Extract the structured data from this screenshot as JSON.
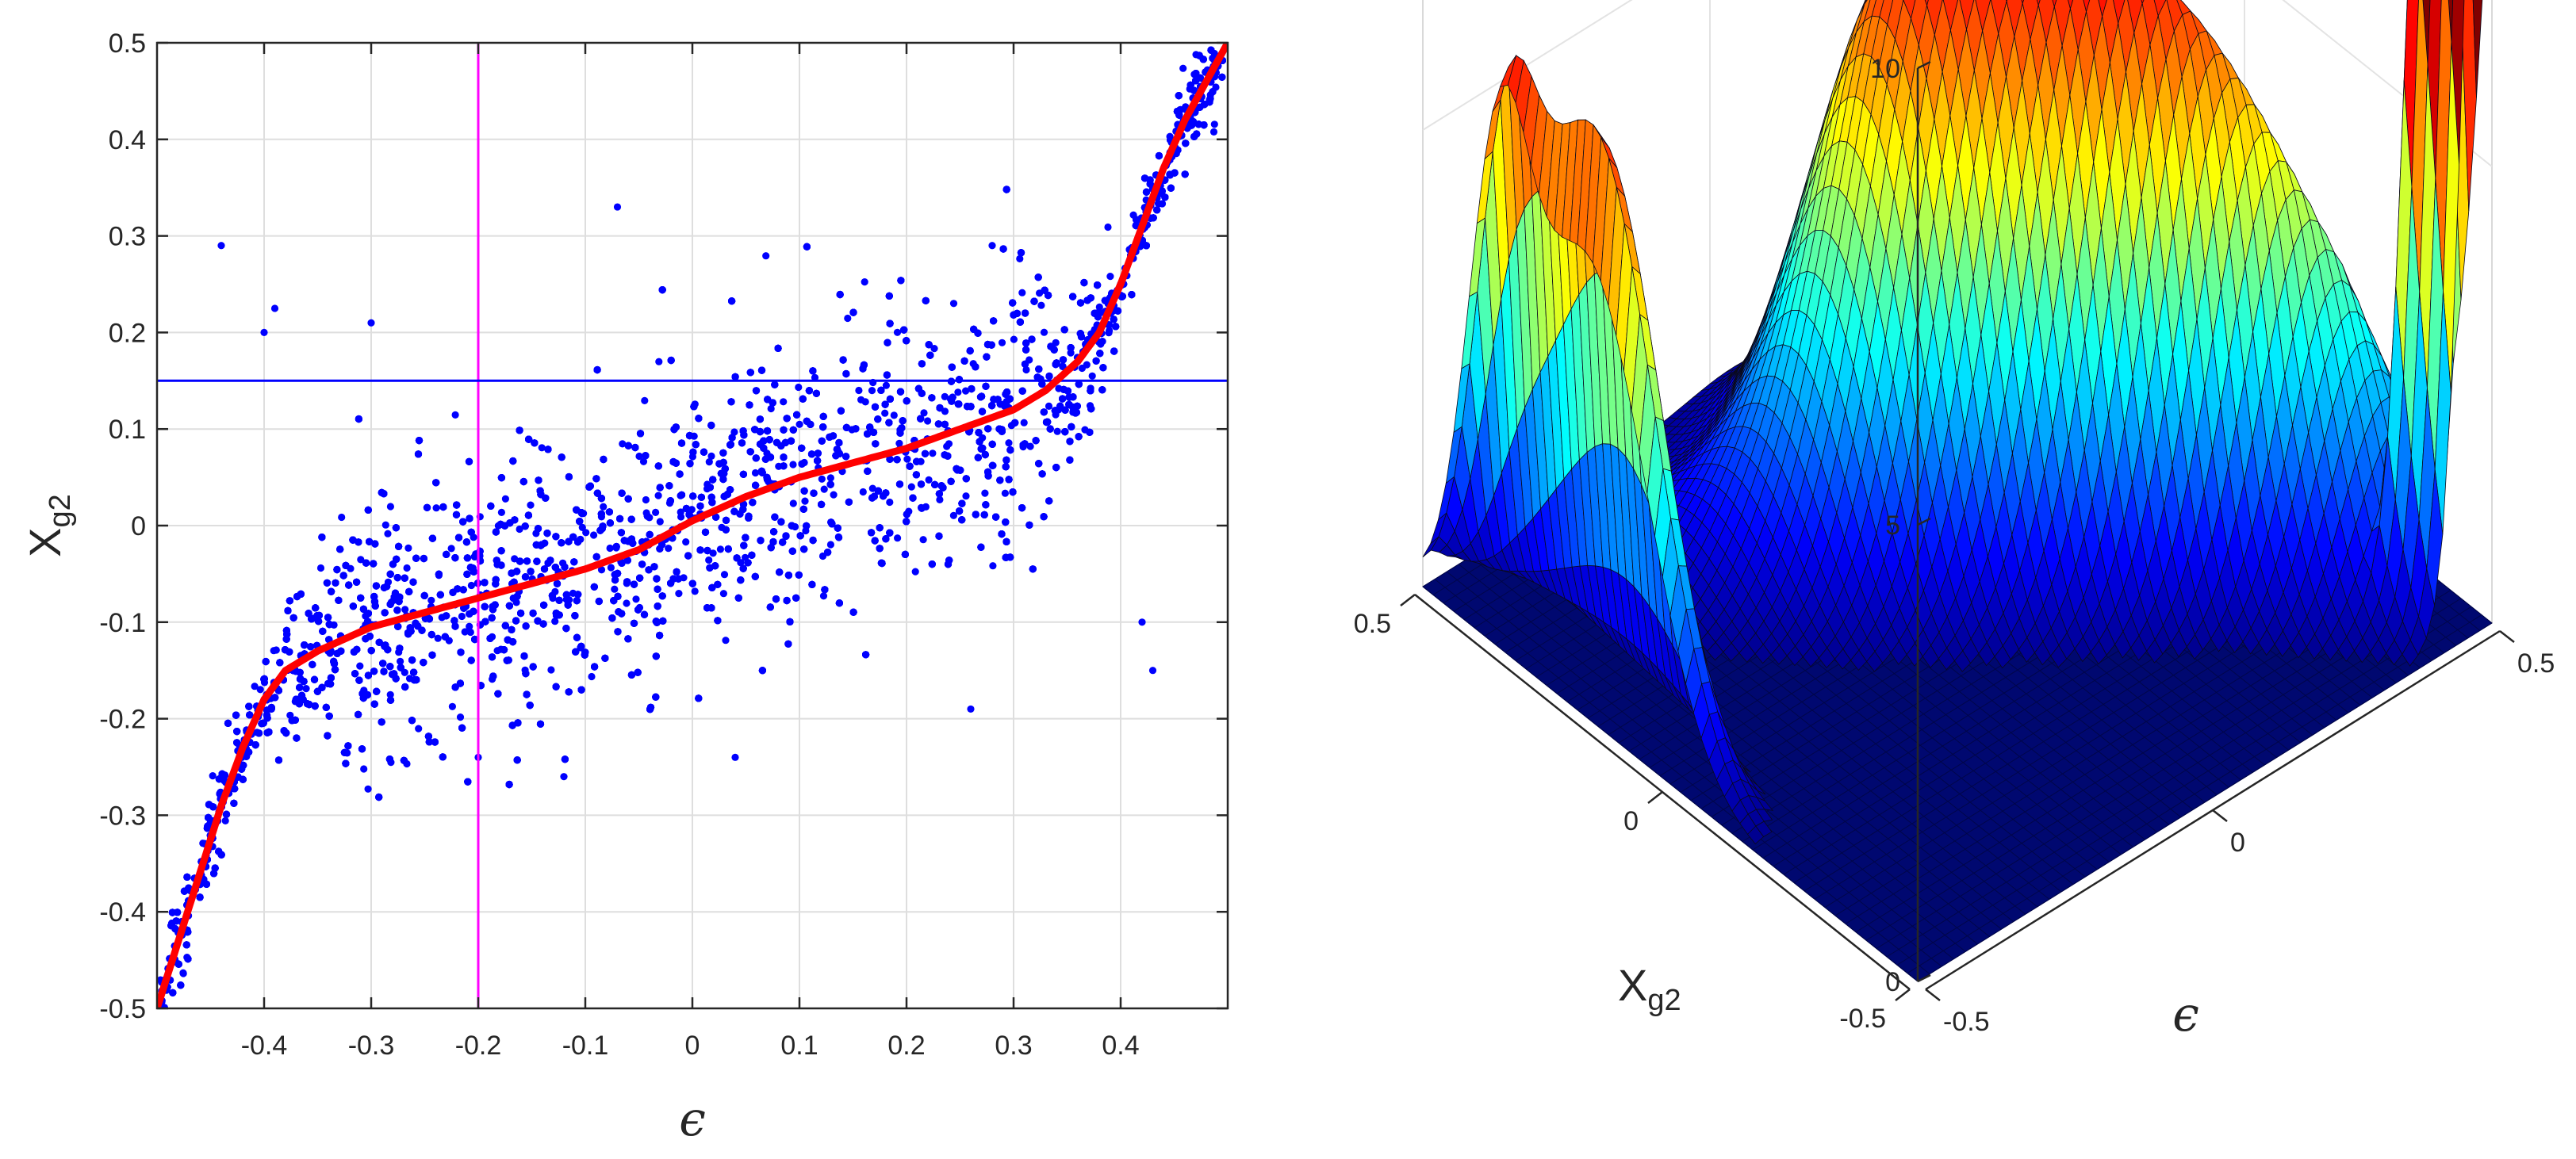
{
  "chart_data": [
    {
      "type": "scatter",
      "xlabel": "ϵ",
      "ylabel": {
        "main": "X",
        "sub": "g2"
      },
      "xlim": [
        -0.5,
        0.5
      ],
      "ylim": [
        -0.5,
        0.5
      ],
      "xticks": [
        -0.4,
        -0.3,
        -0.2,
        -0.1,
        0,
        0.1,
        0.2,
        0.3,
        0.4
      ],
      "xtick_labels": [
        "-0.4",
        "-0.3",
        "-0.2",
        "-0.1",
        "0",
        "0.1",
        "0.2",
        "0.3",
        "0.4"
      ],
      "yticks": [
        -0.5,
        -0.4,
        -0.3,
        -0.2,
        -0.1,
        0,
        0.1,
        0.2,
        0.3,
        0.4,
        0.5
      ],
      "ytick_labels": [
        "-0.5",
        "-0.4",
        "-0.3",
        "-0.2",
        "-0.1",
        "0",
        "0.1",
        "0.2",
        "0.3",
        "0.4",
        "0.5"
      ],
      "grid": true,
      "colors": {
        "points": "#0000ff",
        "curve": "#ff0000",
        "vline": "#ff00ff",
        "hline": "#0000ff"
      },
      "reference_lines": {
        "vertical_x": -0.2,
        "horizontal_y": 0.15
      },
      "series": [
        {
          "kind": "curve",
          "x": [
            -0.5,
            -0.48,
            -0.46,
            -0.44,
            -0.42,
            -0.4,
            -0.38,
            -0.35,
            -0.32,
            -0.3,
            -0.25,
            -0.2,
            -0.15,
            -0.1,
            -0.05,
            0,
            0.05,
            0.1,
            0.15,
            0.2,
            0.25,
            0.3,
            0.33,
            0.36,
            0.38,
            0.4,
            0.42,
            0.44,
            0.46,
            0.48,
            0.5
          ],
          "y": [
            -0.5,
            -0.43,
            -0.36,
            -0.29,
            -0.23,
            -0.18,
            -0.15,
            -0.13,
            -0.115,
            -0.105,
            -0.09,
            -0.075,
            -0.06,
            -0.045,
            -0.025,
            0.005,
            0.03,
            0.05,
            0.065,
            0.08,
            0.1,
            0.12,
            0.14,
            0.17,
            0.2,
            0.25,
            0.31,
            0.37,
            0.42,
            0.46,
            0.5
          ]
        },
        {
          "kind": "scatter",
          "approx_point_count": 9000,
          "spread_around_curve": {
            "center": 0.045,
            "middle": 0.08,
            "tails": 0.025
          },
          "outliers": [
            [
              -0.44,
              0.29
            ],
            [
              -0.07,
              0.33
            ],
            [
              -0.4,
              0.2
            ],
            [
              -0.3,
              0.21
            ],
            [
              -0.12,
              -0.26
            ],
            [
              0.04,
              -0.24
            ],
            [
              -0.2,
              -0.24
            ],
            [
              0.26,
              -0.19
            ],
            [
              0.42,
              -0.1
            ],
            [
              0.43,
              -0.15
            ],
            [
              -0.39,
              0.225
            ],
            [
              0.28,
              0.29
            ]
          ]
        }
      ]
    },
    {
      "type": "surface",
      "xlabel": {
        "main": "X",
        "sub": "g2"
      },
      "ylabel": "ϵ",
      "zlim": [
        0,
        10
      ],
      "zticks": [
        0,
        5,
        10
      ],
      "ztick_labels": [
        "0",
        "5",
        "10"
      ],
      "x_tick_labels": [
        "0.5",
        "0",
        "-0.5"
      ],
      "y_tick_labels": [
        "-0.5",
        "0",
        "0.5"
      ],
      "colormap": "jet",
      "grid": true
    }
  ]
}
